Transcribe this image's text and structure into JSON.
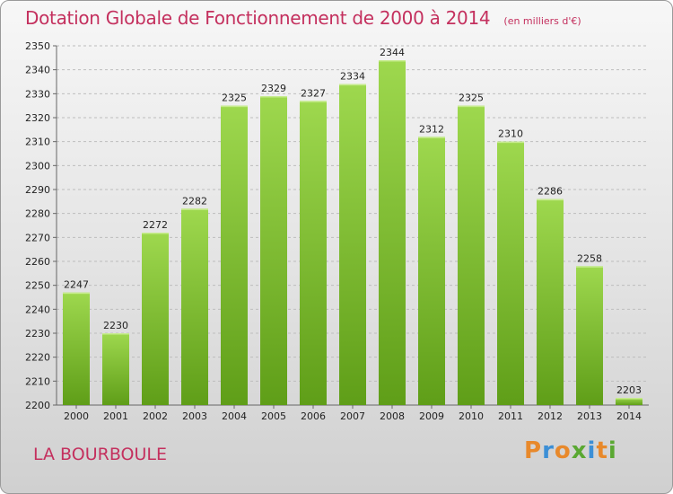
{
  "header": {
    "title": "Dotation Globale de Fonctionnement de 2000 à 2014",
    "subtitle": "(en milliers d'€)"
  },
  "footer": {
    "commune": "LA BOURBOULE",
    "logo_text": "Proxiti",
    "logo_colors": [
      "#e8892b",
      "#3c8fd6",
      "#e8892b",
      "#5aa832",
      "#3c8fd6",
      "#e8892b",
      "#5aa832"
    ]
  },
  "chart_data": {
    "type": "bar",
    "title": "Dotation Globale de Fonctionnement de 2000 à 2014",
    "subtitle": "(en milliers d'€)",
    "xlabel": "",
    "ylabel": "",
    "categories": [
      "2000",
      "2001",
      "2002",
      "2003",
      "2004",
      "2005",
      "2006",
      "2007",
      "2008",
      "2009",
      "2010",
      "2011",
      "2012",
      "2013",
      "2014"
    ],
    "values": [
      2247,
      2230,
      2272,
      2282,
      2325,
      2329,
      2327,
      2334,
      2344,
      2312,
      2325,
      2310,
      2286,
      2258,
      2203
    ],
    "value_labels": [
      "2247",
      "2230",
      "2272",
      "2282",
      "2325",
      "2329",
      "2327",
      "2334",
      "2344",
      "2312",
      "2325",
      "2310",
      "2286",
      "2258",
      "2203"
    ],
    "ylim": [
      2200,
      2350
    ],
    "yticks": [
      2200,
      2210,
      2220,
      2230,
      2240,
      2250,
      2260,
      2270,
      2280,
      2290,
      2300,
      2310,
      2320,
      2330,
      2340,
      2350
    ],
    "grid": true,
    "bar_color_top": "#9ed84e",
    "bar_color_bottom": "#5f9e18"
  }
}
